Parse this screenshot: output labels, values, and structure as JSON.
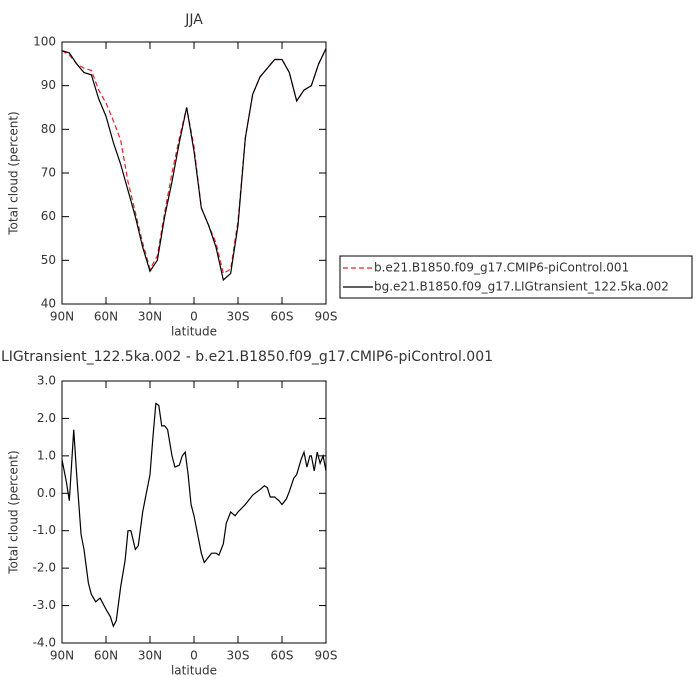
{
  "chart_data": [
    {
      "type": "line",
      "title": "JJA",
      "xlabel": "latitude",
      "ylabel": "Total cloud (percent)",
      "x": [
        90,
        85,
        80,
        75,
        70,
        65,
        60,
        55,
        50,
        45,
        40,
        35,
        30,
        25,
        20,
        15,
        10,
        5,
        0,
        -5,
        -10,
        -15,
        -20,
        -25,
        -30,
        -35,
        -40,
        -45,
        -50,
        -55,
        -60,
        -65,
        -70,
        -75,
        -80,
        -85,
        -90
      ],
      "series": [
        {
          "name": "b.e21.B1850.f09_g17.CMIP6-piControl.001",
          "color": "#e8202a",
          "dashed": true,
          "values": [
            98,
            97,
            95,
            94,
            93.5,
            89,
            86,
            82,
            77.5,
            68,
            61,
            54,
            48,
            51,
            61,
            70,
            78,
            85,
            76,
            62,
            58,
            54,
            47,
            48,
            59,
            78,
            88,
            92,
            94,
            96,
            96,
            93,
            86.5,
            89,
            90,
            95,
            98.5
          ]
        },
        {
          "name": "bg.e21.B1850.f09_g17.LIGtransient_122.5ka.002",
          "color": "#000000",
          "dashed": false,
          "values": [
            98,
            97.5,
            95,
            93,
            92.5,
            87,
            83,
            77,
            72,
            66,
            60,
            53,
            47.5,
            50,
            60,
            68,
            77,
            85,
            75,
            62,
            58,
            53,
            45.5,
            47,
            58,
            78,
            88,
            92,
            94,
            96,
            96,
            93,
            86.5,
            89,
            90,
            95,
            98.5
          ]
        }
      ],
      "xlim": [
        90,
        -90
      ],
      "xticks": [
        {
          "value": 90,
          "label": "90N"
        },
        {
          "value": 60,
          "label": "60N"
        },
        {
          "value": 30,
          "label": "30N"
        },
        0,
        {
          "value": -30,
          "label": "30S"
        },
        {
          "value": -60,
          "label": "60S"
        },
        {
          "value": -90,
          "label": "90S"
        }
      ],
      "ylim": [
        40,
        100
      ],
      "yticks": [
        40,
        50,
        60,
        70,
        80,
        90,
        100
      ],
      "legend": "right"
    },
    {
      "type": "line",
      "title": "LIGtransient_122.5ka.002 - b.e21.B1850.f09_g17.CMIP6-piControl.001",
      "xlabel": "latitude",
      "ylabel": "Total cloud (percent)",
      "x": [
        90,
        87,
        85,
        82,
        80,
        77,
        75,
        72,
        70,
        67,
        64,
        60,
        57,
        55,
        53,
        50,
        47,
        45,
        43,
        40,
        38,
        35,
        33,
        30,
        28,
        26,
        24,
        22,
        20,
        18,
        15,
        13,
        10,
        8,
        6,
        4,
        2,
        0,
        -3,
        -5,
        -7,
        -10,
        -12,
        -15,
        -17,
        -20,
        -22,
        -25,
        -28,
        -30,
        -35,
        -40,
        -45,
        -48,
        -50,
        -52,
        -55,
        -58,
        -60,
        -63,
        -65,
        -68,
        -70,
        -73,
        -75,
        -77,
        -79,
        -80,
        -82,
        -84,
        -86,
        -88,
        -90
      ],
      "color": "#000000",
      "values": [
        0.9,
        0.3,
        -0.2,
        1.7,
        0.5,
        -1.1,
        -1.5,
        -2.4,
        -2.7,
        -2.9,
        -2.8,
        -3.1,
        -3.3,
        -3.55,
        -3.4,
        -2.5,
        -1.8,
        -1.0,
        -1.0,
        -1.5,
        -1.4,
        -0.5,
        -0.1,
        0.5,
        1.5,
        2.4,
        2.35,
        1.8,
        1.8,
        1.7,
        1.0,
        0.7,
        0.75,
        1.0,
        1.1,
        0.5,
        -0.3,
        -0.6,
        -1.2,
        -1.6,
        -1.85,
        -1.7,
        -1.6,
        -1.6,
        -1.65,
        -1.35,
        -0.8,
        -0.5,
        -0.6,
        -0.5,
        -0.3,
        -0.05,
        0.1,
        0.2,
        0.15,
        -0.1,
        -0.1,
        -0.2,
        -0.3,
        -0.15,
        0.05,
        0.4,
        0.5,
        0.9,
        1.1,
        0.7,
        1.0,
        1.0,
        0.6,
        1.1,
        0.8,
        1.0,
        0.6
      ],
      "xlim": [
        90,
        -90
      ],
      "xticks": [
        {
          "value": 90,
          "label": "90N"
        },
        {
          "value": 60,
          "label": "60N"
        },
        {
          "value": 30,
          "label": "30N"
        },
        0,
        {
          "value": -30,
          "label": "30S"
        },
        {
          "value": -60,
          "label": "60S"
        },
        {
          "value": -90,
          "label": "90S"
        }
      ],
      "ylim": [
        -4,
        3
      ],
      "yticks": [
        {
          "value": -4,
          "label": "-4.0"
        },
        {
          "value": -3,
          "label": "-3.0"
        },
        {
          "value": -2,
          "label": "-2.0"
        },
        {
          "value": -1,
          "label": "-1.0"
        },
        {
          "value": 0,
          "label": "0.0"
        },
        {
          "value": 1,
          "label": "1.0"
        },
        {
          "value": 2,
          "label": "2.0"
        },
        {
          "value": 3,
          "label": "3.0"
        }
      ]
    }
  ]
}
